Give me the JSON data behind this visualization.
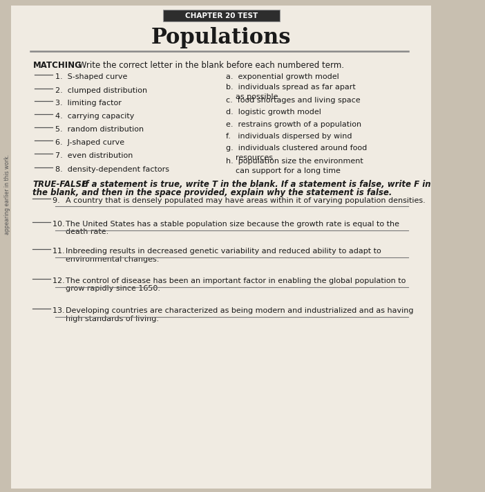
{
  "bg_color": "#c8bfb0",
  "page_bg": "#f0ebe2",
  "chapter_label": "CHAPTER 20 TEST",
  "title": "Populations",
  "section1_label": "MATCHING",
  "section1_intro": "Write the correct letter in the blank before each numbered term.",
  "matching_left": [
    "1.  S-shaped curve",
    "2.  clumped distribution",
    "3.  limiting factor",
    "4.  carrying capacity",
    "5.  random distribution",
    "6.  J-shaped curve",
    "7.  even distribution",
    "8.  density-dependent factors"
  ],
  "matching_right": [
    "a.  exponential growth model",
    "b.  individuals spread as far apart\n    as possible",
    "c.  food shortages and living space",
    "d.  logistic growth model",
    "e.  restrains growth of a population",
    "f.   individuals dispersed by wind",
    "g.  individuals clustered around food\n    resources",
    "h.  population size the environment\n    can support for a long time"
  ],
  "section2_label": "TRUE-FALSE",
  "section2_intro_bold": "If a statement is true, write ",
  "section2_intro_italic_T": "T",
  "section2_intro_mid": " in the blank. If a statement is false, write ",
  "section2_intro_italic_F": "F",
  "section2_intro_end": " in",
  "section2_line2": "the blank, and then in the space provided, explain why the statement is false.",
  "true_false": [
    [
      "9.  ",
      "A country that is densely populated may have areas within it of varying population densities."
    ],
    [
      "10. ",
      "The United States has a stable population size because the growth rate is equal to the\n     death rate."
    ],
    [
      "11. ",
      "Inbreeding results in decreased genetic variability and reduced ability to adapt to\n     environmental changes."
    ],
    [
      "12. ",
      "The control of disease has been an important factor in enabling the global population to\n     grow rapidly since 1650."
    ],
    [
      "13. ",
      "Developing countries are characterized as being modern and industrialized and as having\n     high standards of living."
    ]
  ],
  "sidebar_text": "appearing earlier in this work.",
  "font_color": "#1a1a1a"
}
